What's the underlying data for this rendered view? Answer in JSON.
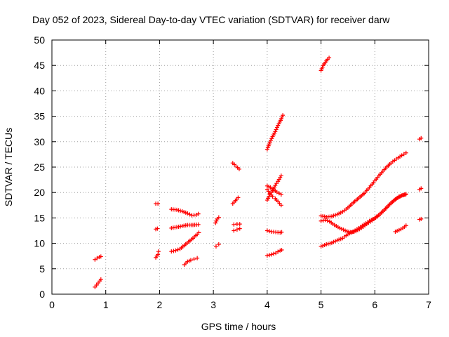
{
  "chart_data": {
    "type": "scatter",
    "title": "Day 052 of 2023, Sidereal Day-to-day VTEC variation (SDTVAR) for receiver darw",
    "xlabel": "GPS time / hours",
    "ylabel": "SDTVAR / TECUs",
    "xlim": [
      0,
      7
    ],
    "ylim": [
      0,
      50
    ],
    "xticks": [
      "0",
      "1",
      "2",
      "3",
      "4",
      "5",
      "6",
      "7"
    ],
    "yticks": [
      "0",
      "5",
      "10",
      "15",
      "20",
      "25",
      "30",
      "35",
      "40",
      "45",
      "50"
    ],
    "grid": true,
    "marker": "+",
    "color": "#ff0000",
    "series": [
      {
        "name": "s1",
        "points": [
          [
            0.8,
            1.4
          ],
          [
            0.83,
            1.8
          ],
          [
            0.86,
            2.2
          ],
          [
            0.89,
            2.6
          ],
          [
            0.91,
            2.9
          ]
        ]
      },
      {
        "name": "s2",
        "points": [
          [
            0.8,
            6.8
          ],
          [
            0.84,
            7.1
          ],
          [
            0.88,
            7.3
          ],
          [
            0.91,
            7.4
          ]
        ]
      },
      {
        "name": "s3",
        "points": [
          [
            1.93,
            7.2
          ],
          [
            1.97,
            7.8
          ],
          [
            1.98,
            8.4
          ]
        ]
      },
      {
        "name": "s4",
        "points": [
          [
            1.93,
            12.8
          ],
          [
            1.96,
            12.9
          ]
        ]
      },
      {
        "name": "s5",
        "points": [
          [
            1.93,
            17.8
          ],
          [
            1.97,
            17.8
          ]
        ]
      },
      {
        "name": "s6",
        "points": [
          [
            2.22,
            16.7
          ],
          [
            2.32,
            16.6
          ],
          [
            2.42,
            16.3
          ],
          [
            2.52,
            15.9
          ],
          [
            2.6,
            15.5
          ],
          [
            2.68,
            15.6
          ],
          [
            2.72,
            15.8
          ]
        ]
      },
      {
        "name": "s7",
        "points": [
          [
            2.22,
            13.0
          ],
          [
            2.32,
            13.2
          ],
          [
            2.42,
            13.4
          ],
          [
            2.52,
            13.6
          ],
          [
            2.62,
            13.6
          ],
          [
            2.72,
            13.7
          ]
        ]
      },
      {
        "name": "s8",
        "points": [
          [
            2.22,
            8.4
          ],
          [
            2.3,
            8.6
          ],
          [
            2.38,
            8.9
          ],
          [
            2.46,
            9.6
          ],
          [
            2.54,
            10.3
          ],
          [
            2.62,
            11.0
          ],
          [
            2.7,
            11.8
          ],
          [
            2.73,
            12.1
          ]
        ]
      },
      {
        "name": "s9",
        "points": [
          [
            2.46,
            5.8
          ],
          [
            2.52,
            6.4
          ],
          [
            2.58,
            6.7
          ],
          [
            2.64,
            6.9
          ],
          [
            2.7,
            7.1
          ]
        ]
      },
      {
        "name": "s10",
        "points": [
          [
            3.05,
            9.4
          ],
          [
            3.1,
            9.8
          ]
        ]
      },
      {
        "name": "s11",
        "points": [
          [
            3.04,
            14.0
          ],
          [
            3.07,
            14.8
          ],
          [
            3.1,
            15.1
          ]
        ]
      },
      {
        "name": "s12",
        "points": [
          [
            3.38,
            12.5
          ],
          [
            3.44,
            12.7
          ],
          [
            3.49,
            12.9
          ]
        ]
      },
      {
        "name": "s13",
        "points": [
          [
            3.38,
            13.7
          ],
          [
            3.44,
            13.8
          ],
          [
            3.49,
            13.8
          ]
        ]
      },
      {
        "name": "s14",
        "points": [
          [
            3.36,
            17.8
          ],
          [
            3.41,
            18.4
          ],
          [
            3.46,
            19.0
          ]
        ]
      },
      {
        "name": "s15",
        "points": [
          [
            3.36,
            25.8
          ],
          [
            3.42,
            25.2
          ],
          [
            3.48,
            24.6
          ]
        ]
      },
      {
        "name": "s16",
        "points": [
          [
            4.0,
            7.6
          ],
          [
            4.08,
            7.8
          ],
          [
            4.16,
            8.1
          ],
          [
            4.24,
            8.6
          ],
          [
            4.27,
            8.7
          ]
        ]
      },
      {
        "name": "s17",
        "points": [
          [
            4.0,
            12.5
          ],
          [
            4.08,
            12.3
          ],
          [
            4.16,
            12.2
          ],
          [
            4.24,
            12.1
          ],
          [
            4.27,
            12.2
          ]
        ]
      },
      {
        "name": "s18",
        "points": [
          [
            4.0,
            18.5
          ],
          [
            4.05,
            19.6
          ],
          [
            4.1,
            20.4
          ],
          [
            4.15,
            21.4
          ],
          [
            4.2,
            22.2
          ],
          [
            4.26,
            23.3
          ]
        ]
      },
      {
        "name": "s19",
        "points": [
          [
            4.0,
            20.6
          ],
          [
            4.05,
            19.8
          ],
          [
            4.1,
            19.2
          ],
          [
            4.15,
            18.8
          ],
          [
            4.2,
            18.2
          ],
          [
            4.26,
            17.5
          ]
        ]
      },
      {
        "name": "s20",
        "points": [
          [
            4.0,
            21.3
          ],
          [
            4.06,
            21.0
          ],
          [
            4.12,
            20.5
          ],
          [
            4.18,
            20.1
          ],
          [
            4.26,
            19.6
          ]
        ]
      },
      {
        "name": "s21",
        "points": [
          [
            4.0,
            28.5
          ],
          [
            4.05,
            29.9
          ],
          [
            4.1,
            31.0
          ],
          [
            4.15,
            32.0
          ],
          [
            4.2,
            33.2
          ],
          [
            4.25,
            34.2
          ],
          [
            4.29,
            35.2
          ]
        ]
      },
      {
        "name": "s22",
        "points": [
          [
            5.0,
            44.0
          ],
          [
            5.04,
            45.0
          ],
          [
            5.08,
            45.6
          ],
          [
            5.12,
            46.2
          ],
          [
            5.15,
            46.5
          ]
        ]
      },
      {
        "name": "s23",
        "points": [
          [
            5.0,
            15.4
          ],
          [
            5.1,
            15.2
          ],
          [
            5.2,
            15.3
          ],
          [
            5.3,
            15.7
          ],
          [
            5.4,
            16.2
          ],
          [
            5.5,
            17.0
          ],
          [
            5.6,
            18.0
          ],
          [
            5.7,
            18.9
          ],
          [
            5.8,
            19.8
          ],
          [
            5.9,
            21.0
          ],
          [
            6.0,
            22.3
          ],
          [
            6.1,
            23.6
          ],
          [
            6.2,
            24.8
          ],
          [
            6.3,
            25.8
          ],
          [
            6.4,
            26.6
          ],
          [
            6.5,
            27.3
          ],
          [
            6.58,
            27.8
          ]
        ]
      },
      {
        "name": "s24",
        "points": [
          [
            5.0,
            14.4
          ],
          [
            5.08,
            14.6
          ],
          [
            5.16,
            14.3
          ],
          [
            5.25,
            13.6
          ],
          [
            5.35,
            13.0
          ],
          [
            5.45,
            12.5
          ],
          [
            5.55,
            12.2
          ],
          [
            5.65,
            12.4
          ],
          [
            5.75,
            13.0
          ],
          [
            5.85,
            13.8
          ],
          [
            5.95,
            14.5
          ],
          [
            6.05,
            15.3
          ],
          [
            6.15,
            16.3
          ],
          [
            6.25,
            17.4
          ],
          [
            6.35,
            18.4
          ],
          [
            6.45,
            19.2
          ],
          [
            6.55,
            19.6
          ],
          [
            6.58,
            19.7
          ]
        ]
      },
      {
        "name": "s25",
        "points": [
          [
            5.0,
            9.4
          ],
          [
            5.1,
            9.8
          ],
          [
            5.2,
            10.1
          ],
          [
            5.3,
            10.6
          ],
          [
            5.4,
            11.0
          ],
          [
            5.5,
            11.8
          ],
          [
            5.6,
            12.3
          ],
          [
            5.7,
            13.0
          ],
          [
            5.8,
            13.7
          ],
          [
            5.9,
            14.4
          ],
          [
            6.0,
            15.0
          ],
          [
            6.1,
            15.8
          ],
          [
            6.2,
            16.8
          ],
          [
            6.3,
            17.9
          ],
          [
            6.4,
            18.8
          ],
          [
            6.5,
            19.4
          ],
          [
            6.57,
            19.6
          ]
        ]
      },
      {
        "name": "s26",
        "points": [
          [
            6.38,
            12.3
          ],
          [
            6.45,
            12.6
          ],
          [
            6.52,
            13.0
          ],
          [
            6.58,
            13.5
          ]
        ]
      },
      {
        "name": "s27",
        "points": [
          [
            6.83,
            14.7
          ],
          [
            6.86,
            14.8
          ]
        ]
      },
      {
        "name": "s28",
        "points": [
          [
            6.83,
            20.6
          ],
          [
            6.86,
            20.8
          ]
        ]
      },
      {
        "name": "s29",
        "points": [
          [
            6.83,
            30.5
          ],
          [
            6.86,
            30.7
          ]
        ]
      }
    ]
  }
}
